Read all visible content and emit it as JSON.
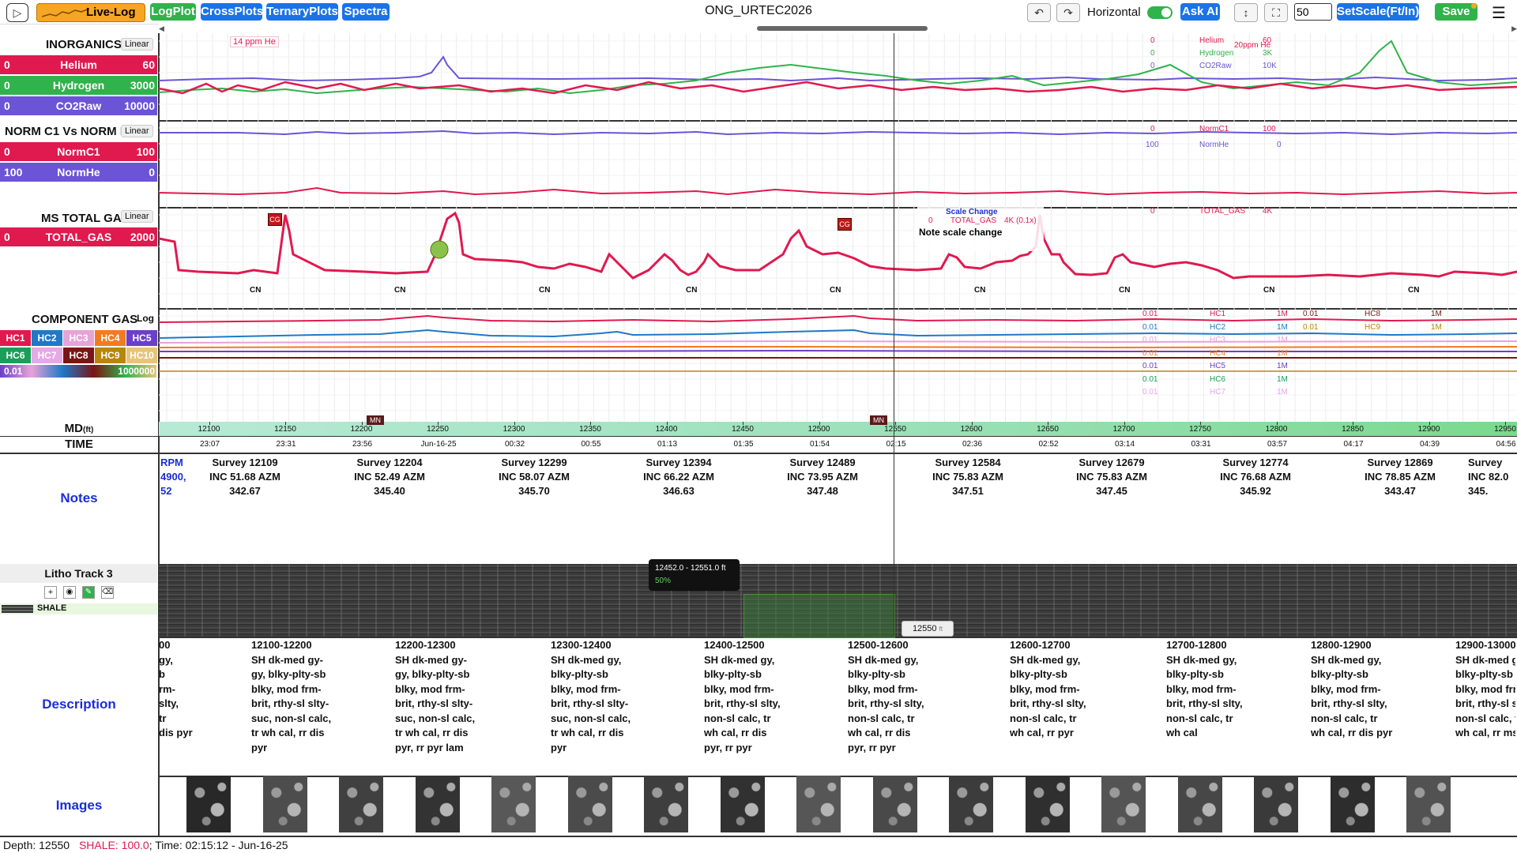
{
  "app": {
    "live_log_label": "Live-Log",
    "tabs": [
      "LogPlot",
      "CrossPlots",
      "TernaryPlots",
      "Spectra"
    ],
    "title": "ONG_URTEC2026",
    "undo_icon": "undo-icon",
    "redo_icon": "redo-icon",
    "horizontal_label": "Horizontal",
    "ask_ai_label": "Ask AI",
    "scale_value": "50",
    "setscale_label": "SetScale(Ft/In)",
    "save_label": "Save",
    "colors": {
      "blue": "#1a73e8",
      "green": "#2fb34a",
      "live": "#f5a623",
      "red": "#e0194f",
      "purple": "#6b54d6"
    }
  },
  "tracks": {
    "inorganics": {
      "title": "INORGANICS",
      "scale": "Linear",
      "curves": [
        {
          "min": "0",
          "name": "Helium",
          "max": "60",
          "color": "#e0194f"
        },
        {
          "min": "0",
          "name": "Hydrogen",
          "max": "3000",
          "color": "#2fb34a"
        },
        {
          "min": "0",
          "name": "CO2Raw",
          "max": "10000",
          "color": "#6b54d6"
        }
      ],
      "annotation": "14 ppm He",
      "legend": [
        {
          "min": "0",
          "name": "Helium",
          "max": "60",
          "color": "#e0194f"
        },
        {
          "min": "0",
          "name": "Hydrogen",
          "max": "3K",
          "color": "#2fb34a"
        },
        {
          "min": "0",
          "name": "CO2Raw",
          "max": "10K",
          "color": "#6b54d6"
        }
      ],
      "legend_note": "20ppm He"
    },
    "norm": {
      "title": "NORM C1 Vs NORM H",
      "scale": "Linear",
      "curves": [
        {
          "min": "0",
          "name": "NormC1",
          "max": "100",
          "color": "#e0194f"
        },
        {
          "min": "100",
          "name": "NormHe",
          "max": "0",
          "color": "#6b54d6"
        }
      ],
      "legend": [
        {
          "min": "0",
          "name": "NormC1",
          "max": "100",
          "color": "#e0194f"
        },
        {
          "min": "100",
          "name": "NormHe",
          "max": "0",
          "color": "#6b54d6"
        }
      ]
    },
    "ms_total": {
      "title": "MS TOTAL GAS",
      "scale": "Linear",
      "curves": [
        {
          "min": "0",
          "name": "TOTAL_GAS",
          "max": "2000",
          "color": "#e0194f"
        }
      ],
      "scale_change_title": "Scale Change",
      "scale_change_min": "0",
      "scale_change_name": "TOTAL_GAS",
      "scale_change_max": "4K (0.1x)",
      "scale_change_note": "Note scale change",
      "legend": [
        {
          "min": "0",
          "name": "TOTAL_GAS",
          "max": "4K",
          "color": "#e0194f"
        }
      ],
      "cg_label": "CG",
      "cn_label": "CN"
    },
    "component": {
      "title": "COMPONENT GAS",
      "scale": "Log",
      "boxes": [
        {
          "name": "HC1",
          "color": "#e0194f"
        },
        {
          "name": "HC2",
          "color": "#1f78c8"
        },
        {
          "name": "HC3",
          "color": "#e7a3d8"
        },
        {
          "name": "HC4",
          "color": "#f07c22"
        },
        {
          "name": "HC5",
          "color": "#6b3fc9"
        },
        {
          "name": "HC6",
          "color": "#1a9e5a"
        },
        {
          "name": "HC7",
          "color": "#e6a8e6"
        },
        {
          "name": "HC8",
          "color": "#7a1515"
        },
        {
          "name": "HC9",
          "color": "#b8860b"
        },
        {
          "name": "HC10",
          "color": "#e8c47a"
        }
      ],
      "range_min": "0.01",
      "range_max": "1000000",
      "legend": [
        {
          "min": "0.01",
          "name": "HC1",
          "max": "1M",
          "color": "#e0194f"
        },
        {
          "min": "0.01",
          "name": "HC2",
          "max": "1M",
          "color": "#1f78c8"
        },
        {
          "min": "0.01",
          "name": "HC3",
          "max": "1M",
          "color": "#e7a3d8"
        },
        {
          "min": "0.01",
          "name": "HC4",
          "max": "1M",
          "color": "#f07c22"
        },
        {
          "min": "0.01",
          "name": "HC5",
          "max": "1M",
          "color": "#6b3fc9"
        },
        {
          "min": "0.01",
          "name": "HC6",
          "max": "1M",
          "color": "#1a9e5a"
        },
        {
          "min": "0.01",
          "name": "HC7",
          "max": "1M",
          "color": "#e6a8e6"
        }
      ],
      "legend2": [
        {
          "min": "0.01",
          "name": "HC8",
          "max": "1M",
          "color": "#7a1515"
        },
        {
          "min": "0.01",
          "name": "HC9",
          "max": "1M",
          "color": "#b8860b"
        }
      ]
    }
  },
  "depth_axis": {
    "md_label": "MD",
    "md_unit": "(ft)",
    "time_label": "TIME",
    "mn_label": "MN",
    "depths": [
      "12100",
      "12150",
      "12200",
      "12250",
      "12300",
      "12350",
      "12400",
      "12450",
      "12500",
      "12550",
      "12600",
      "12650",
      "12700",
      "12750",
      "12800",
      "12850",
      "12900",
      "12950"
    ],
    "times": [
      "23:07",
      "23:31",
      "23:56",
      "Jun-16-25",
      "00:32",
      "00:55",
      "01:13",
      "01:35",
      "01:54",
      "02:15",
      "02:36",
      "02:52",
      "03:14",
      "03:31",
      "03:57",
      "04:17",
      "04:39",
      "04:56"
    ]
  },
  "notes": {
    "label": "Notes",
    "partial": [
      "RPM",
      "4900,",
      "52"
    ],
    "surveys": [
      {
        "title": "Survey 12109",
        "inc": "INC 51.68 AZM",
        "azm": "342.67"
      },
      {
        "title": "Survey 12204",
        "inc": "INC 52.49 AZM",
        "azm": "345.40"
      },
      {
        "title": "Survey 12299",
        "inc": "INC 58.07 AZM",
        "azm": "345.70"
      },
      {
        "title": "Survey 12394",
        "inc": "INC 66.22 AZM",
        "azm": "346.63"
      },
      {
        "title": "Survey 12489",
        "inc": "INC 73.95 AZM",
        "azm": "347.48"
      },
      {
        "title": "Survey 12584",
        "inc": "INC 75.83 AZM",
        "azm": "347.51"
      },
      {
        "title": "Survey 12679",
        "inc": "INC 75.83 AZM",
        "azm": "347.45"
      },
      {
        "title": "Survey 12774",
        "inc": "INC 76.68 AZM",
        "azm": "345.92"
      },
      {
        "title": "Survey 12869",
        "inc": "INC 78.85 AZM",
        "azm": "343.47"
      },
      {
        "title": "Survey",
        "inc": "INC 82.0",
        "azm": "345."
      }
    ]
  },
  "litho": {
    "title": "Litho Track 3",
    "legend_label": "SHALE",
    "tooltip_range": "12452.0 - 12551.0 ft",
    "tooltip_pct": "50%",
    "cursor_depth": "12550",
    "cursor_unit": "ft",
    "tool_icons": [
      "add-icon",
      "eye-icon",
      "pencil-icon",
      "eraser-icon"
    ]
  },
  "description": {
    "label": "Description",
    "partial": [
      "00",
      "gy,",
      "b",
      "rm-",
      "slty,",
      "tr",
      "dis pyr"
    ],
    "entries": [
      {
        "range": "12100-12200",
        "lines": [
          "SH dk-med gy-",
          "gy, blky-plty-sb",
          "blky, mod frm-",
          "brit, rthy-sl slty-",
          "suc, non-sl calc,",
          "tr wh cal, rr dis",
          "pyr"
        ]
      },
      {
        "range": "12200-12300",
        "lines": [
          "SH dk-med gy-",
          "gy, blky-plty-sb",
          "blky, mod frm-",
          "brit, rthy-sl slty-",
          "suc, non-sl calc,",
          "tr wh cal, rr dis",
          "pyr, rr pyr lam"
        ]
      },
      {
        "range": "12300-12400",
        "lines": [
          "SH dk-med gy,",
          "blky-plty-sb",
          "blky, mod frm-",
          "brit, rthy-sl slty-",
          "suc, non-sl calc,",
          "tr wh cal, rr dis",
          "pyr"
        ]
      },
      {
        "range": "12400-12500",
        "lines": [
          "SH dk-med gy,",
          "blky-plty-sb",
          "blky, mod frm-",
          "brit, rthy-sl slty,",
          "non-sl calc, tr",
          "wh cal, rr dis",
          "pyr, rr pyr"
        ]
      },
      {
        "range": "12500-12600",
        "lines": [
          "SH dk-med gy,",
          "blky-plty-sb",
          "blky, mod frm-",
          "brit, rthy-sl slty,",
          "non-sl calc, tr",
          "wh cal, rr dis",
          "pyr, rr pyr"
        ]
      },
      {
        "range": "12600-12700",
        "lines": [
          "SH dk-med gy,",
          "blky-plty-sb",
          "blky, mod frm-",
          "brit, rthy-sl slty,",
          "non-sl calc, tr",
          "wh cal, rr pyr"
        ]
      },
      {
        "range": "12700-12800",
        "lines": [
          "SH dk-med gy,",
          "blky-plty-sb",
          "blky, mod frm-",
          "brit, rthy-sl slty,",
          "non-sl calc, tr",
          "wh cal"
        ]
      },
      {
        "range": "12800-12900",
        "lines": [
          "SH dk-med gy,",
          "blky-plty-sb",
          "blky, mod frm-",
          "brit, rthy-sl slty,",
          "non-sl calc, tr",
          "wh cal, rr dis pyr"
        ]
      },
      {
        "range": "12900-13000",
        "lines": [
          "SH dk-med gy,",
          "blky-plty-sb",
          "blky, mod frm",
          "brit, rthy-sl sl",
          "non-sl calc, tr",
          "wh cal, rr msv py"
        ]
      }
    ]
  },
  "images": {
    "label": "Images",
    "count": 18
  },
  "status": {
    "depth_text": "Depth: 12550",
    "shale_text": "SHALE: 100.0",
    "time_text": "; Time: 02:15:12 - Jun-16-25"
  }
}
